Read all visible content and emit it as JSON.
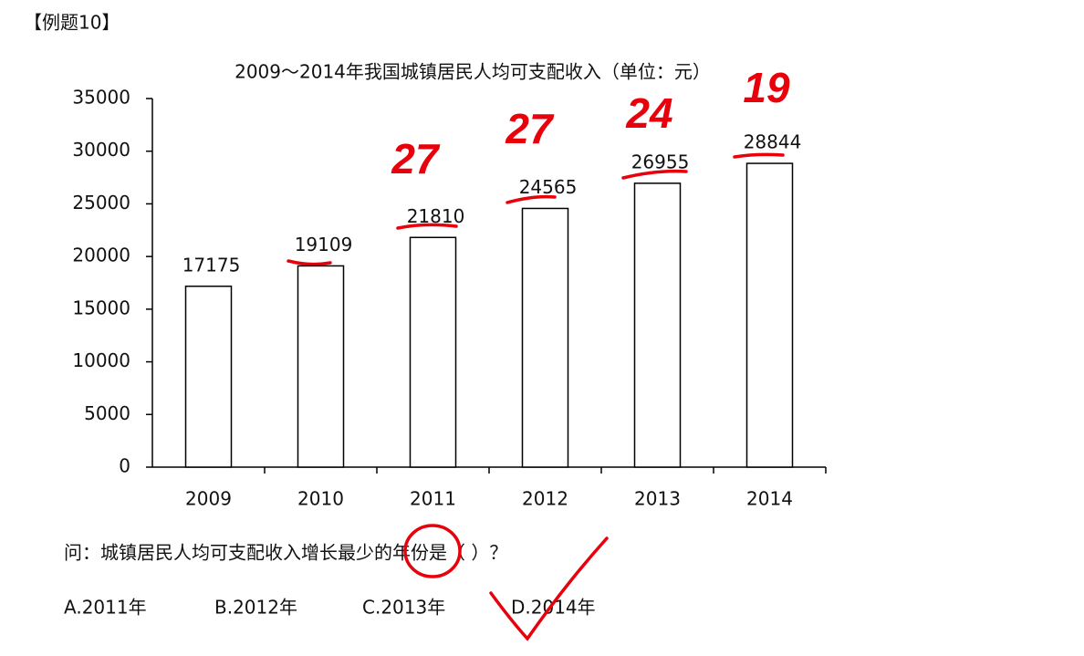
{
  "header": "【例题10】",
  "chart_data": {
    "type": "bar",
    "title": "2009～2014年我国城镇居民人均可支配收入（单位：元）",
    "categories": [
      "2009",
      "2010",
      "2011",
      "2012",
      "2013",
      "2014"
    ],
    "values": [
      17175,
      19109,
      21810,
      24565,
      26955,
      28844
    ],
    "color": "#ffffff",
    "edgecolor": "#000000",
    "ylim": [
      0,
      35000
    ],
    "yticks": [
      0,
      5000,
      10000,
      15000,
      20000,
      25000,
      30000,
      35000
    ],
    "grid": false,
    "annotations": [
      "27",
      "27",
      "24",
      "19"
    ]
  },
  "question": "问：城镇居民人均可支配收入增长最少的年份是（ ）？",
  "options": [
    "A.2011年",
    "B.2012年",
    "C.2013年",
    "D.2014年"
  ]
}
